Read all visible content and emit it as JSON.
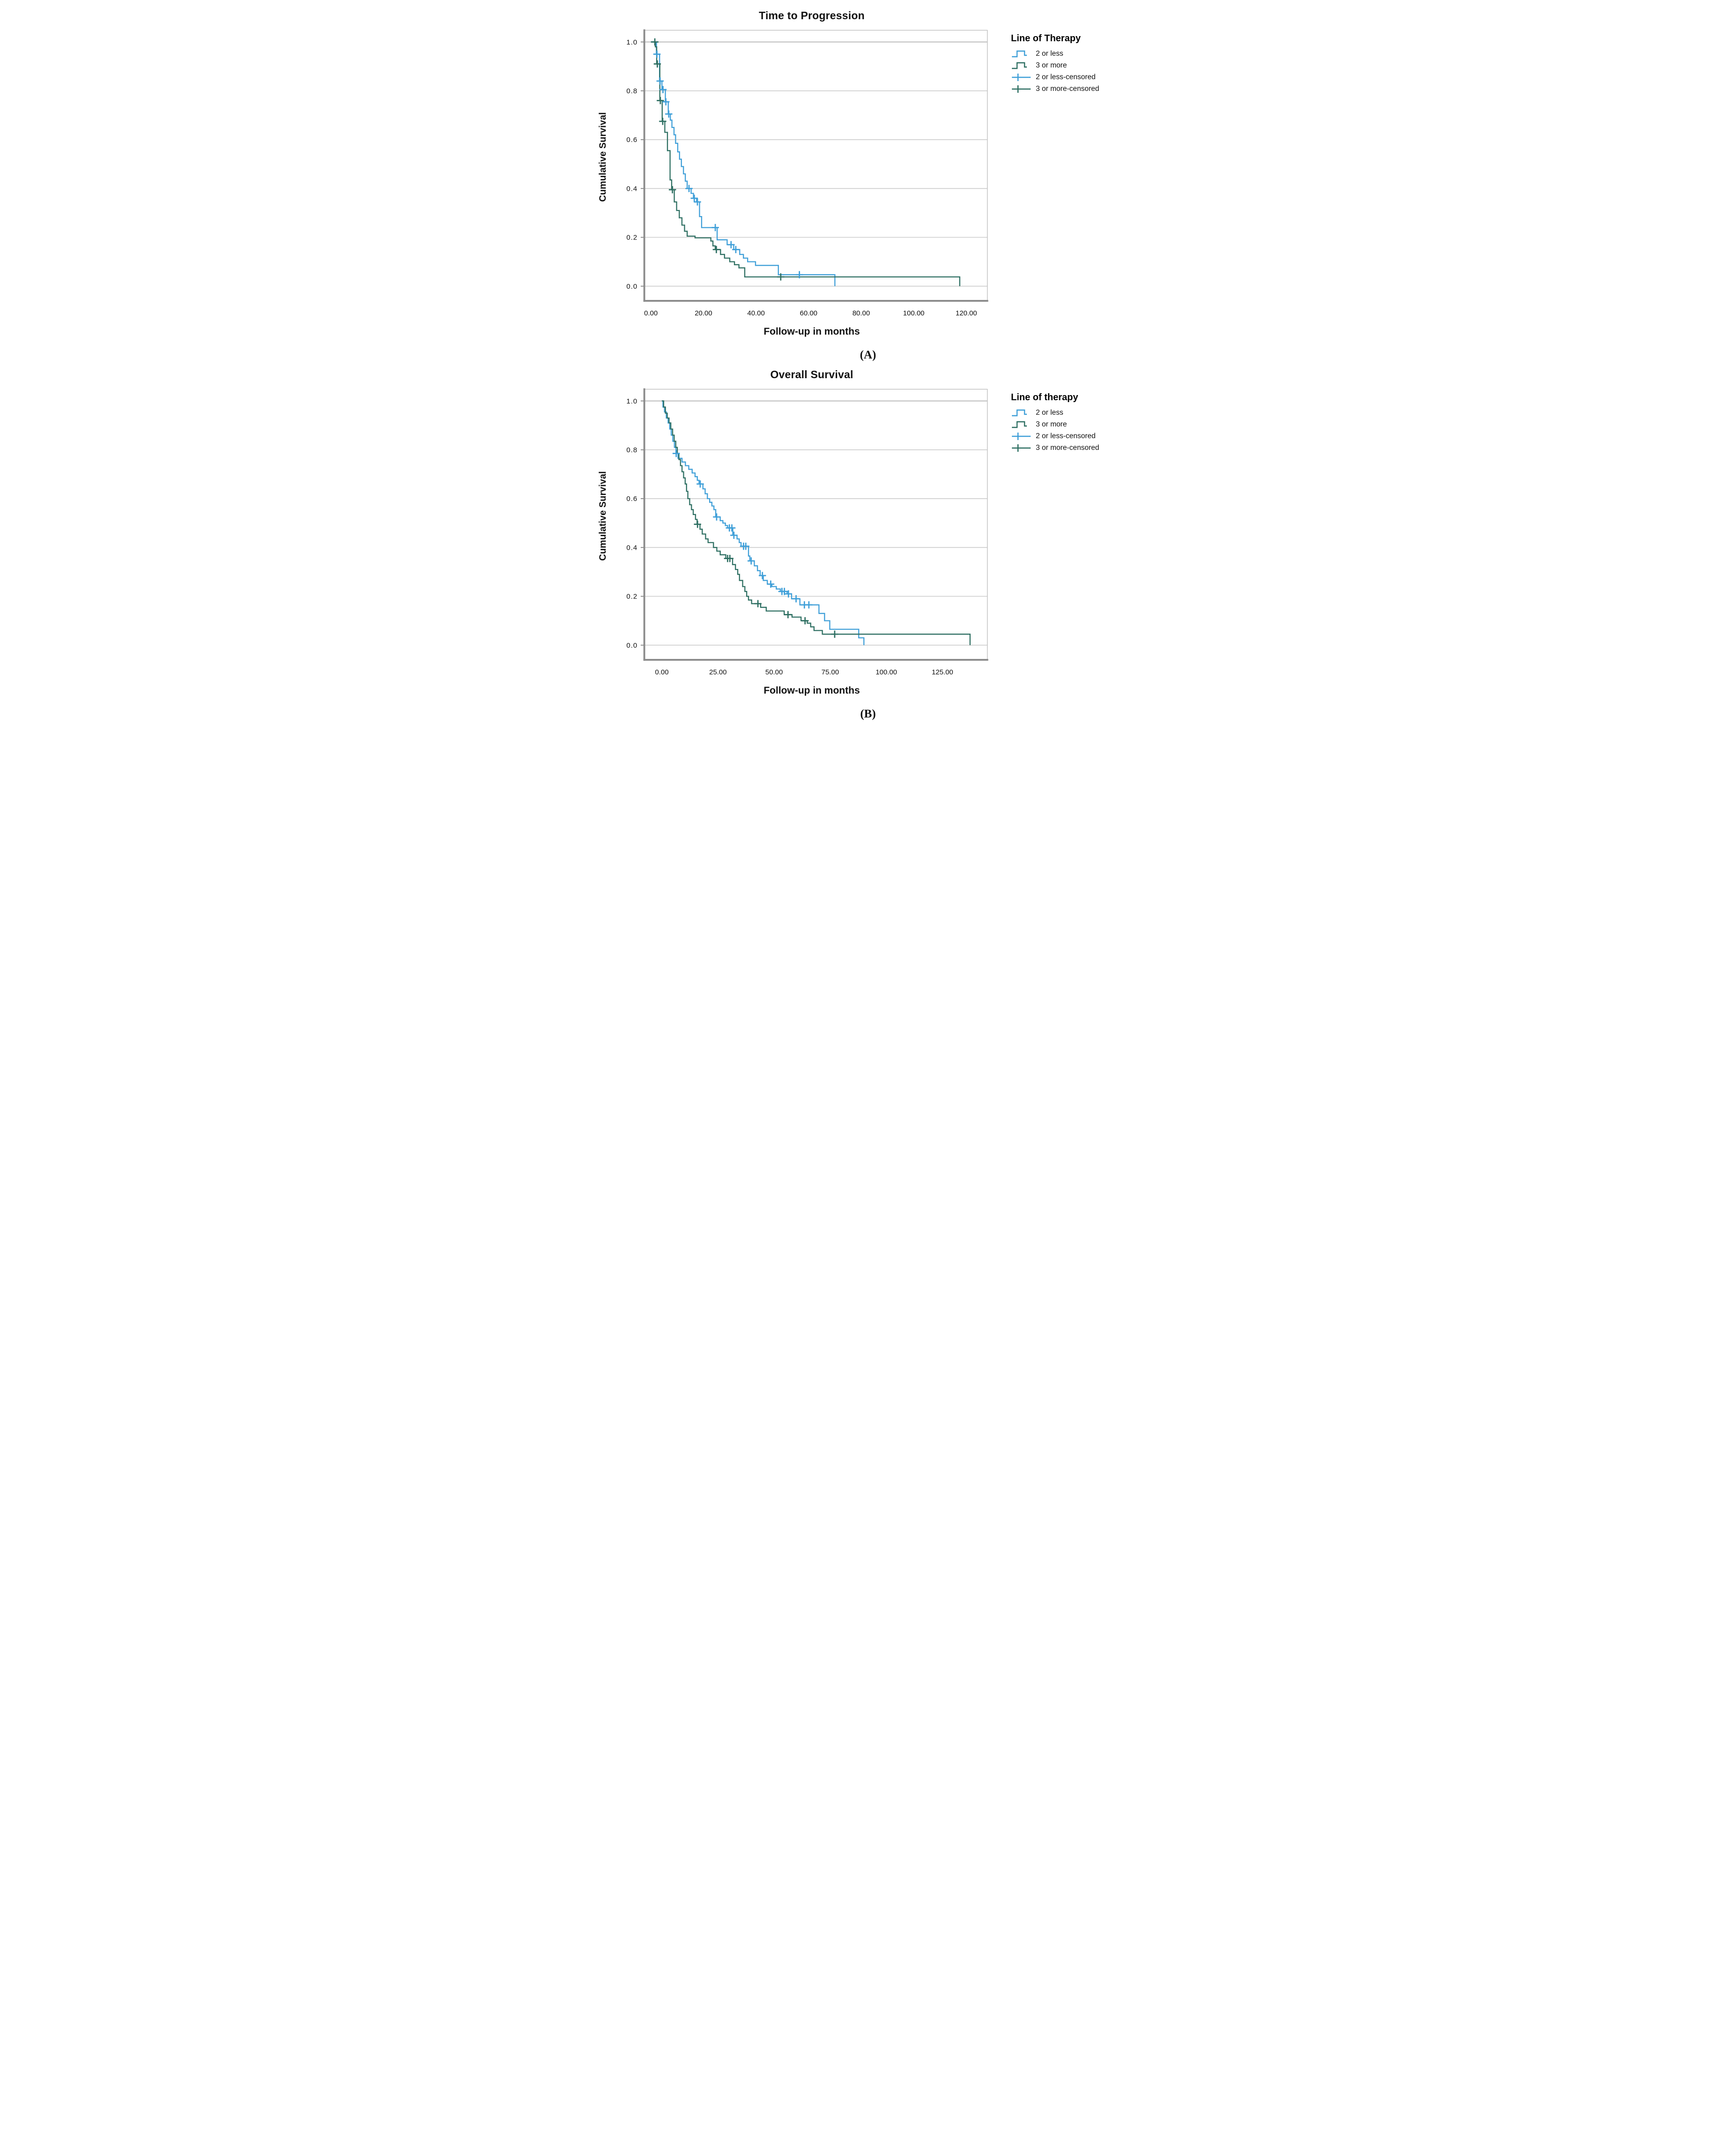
{
  "figure": {
    "background": "#ffffff",
    "gridline_color": "#cfcfcf",
    "frame_color": "#bdbdbd",
    "axis_color": "#8c8c8c",
    "text_color": "#111111"
  },
  "chart_data": [
    {
      "type": "line",
      "subtype": "kaplan-meier-step",
      "title": "Time to Progression",
      "xlabel": "Follow-up in months",
      "ylabel": "Cumulative Survival",
      "caption": "(A)",
      "legend_title": "Line of Therapy",
      "legend_position": "right",
      "grid": true,
      "xlim": [
        -2.5,
        128
      ],
      "ylim": [
        -0.06,
        1.048
      ],
      "x_ticks": {
        "values": [
          0,
          20,
          40,
          60,
          80,
          100,
          120
        ],
        "labels": [
          "0.00",
          "20.00",
          "40.00",
          "60.00",
          "80.00",
          "100.00",
          "120.00"
        ]
      },
      "y_ticks": {
        "values": [
          1.0,
          0.8,
          0.6,
          0.4,
          0.2,
          0.0
        ],
        "labels": [
          "1.0",
          "0.8",
          "0.6",
          "0.4",
          "0.2",
          "0.0"
        ]
      },
      "series": [
        {
          "name": "2 or less",
          "style": "step",
          "marker": "none",
          "color": "#3F9FD8",
          "points": [
            [
              0,
              1.0
            ],
            [
              2.1,
              0.95
            ],
            [
              3.3,
              0.84
            ],
            [
              4.2,
              0.805
            ],
            [
              5.5,
              0.755
            ],
            [
              6.6,
              0.705
            ],
            [
              7.4,
              0.68
            ],
            [
              8.0,
              0.65
            ],
            [
              8.8,
              0.62
            ],
            [
              9.4,
              0.585
            ],
            [
              10.2,
              0.55
            ],
            [
              10.9,
              0.52
            ],
            [
              11.6,
              0.49
            ],
            [
              12.4,
              0.46
            ],
            [
              13.1,
              0.43
            ],
            [
              13.8,
              0.4
            ],
            [
              15.3,
              0.38
            ],
            [
              16.2,
              0.36
            ],
            [
              17.4,
              0.345
            ],
            [
              18.5,
              0.285
            ],
            [
              19.3,
              0.24
            ],
            [
              25.2,
              0.19
            ],
            [
              29.0,
              0.17
            ],
            [
              31.5,
              0.15
            ],
            [
              33.8,
              0.13
            ],
            [
              35.2,
              0.115
            ],
            [
              36.8,
              0.1
            ],
            [
              39.8,
              0.085
            ],
            [
              48.5,
              0.047
            ],
            [
              70,
              0
            ]
          ]
        },
        {
          "name": "3 or more",
          "style": "step",
          "marker": "none",
          "color": "#2E6F62",
          "points": [
            [
              0,
              1.0
            ],
            [
              1.7,
              0.98
            ],
            [
              2.2,
              0.91
            ],
            [
              3.4,
              0.76
            ],
            [
              4.3,
              0.675
            ],
            [
              5.3,
              0.63
            ],
            [
              6.3,
              0.555
            ],
            [
              7.3,
              0.435
            ],
            [
              7.9,
              0.395
            ],
            [
              8.9,
              0.345
            ],
            [
              9.8,
              0.31
            ],
            [
              10.8,
              0.28
            ],
            [
              11.8,
              0.25
            ],
            [
              12.8,
              0.225
            ],
            [
              13.8,
              0.205
            ],
            [
              16.8,
              0.198
            ],
            [
              22.8,
              0.185
            ],
            [
              23.6,
              0.165
            ],
            [
              24.5,
              0.15
            ],
            [
              26.5,
              0.13
            ],
            [
              28.0,
              0.115
            ],
            [
              30.0,
              0.1
            ],
            [
              31.8,
              0.088
            ],
            [
              33.5,
              0.075
            ],
            [
              35.7,
              0.038
            ],
            [
              117.5,
              0
            ]
          ]
        },
        {
          "name": "2 or less-censored",
          "style": "none",
          "marker": "plus",
          "color": "#3F9FD8",
          "points": [
            [
              2.3,
              0.95
            ],
            [
              3.5,
              0.84
            ],
            [
              4.6,
              0.805
            ],
            [
              5.7,
              0.755
            ],
            [
              6.8,
              0.705
            ],
            [
              14.5,
              0.4
            ],
            [
              16.5,
              0.36
            ],
            [
              17.7,
              0.345
            ],
            [
              24.5,
              0.24
            ],
            [
              30.5,
              0.17
            ],
            [
              32.3,
              0.15
            ],
            [
              56.5,
              0.047
            ]
          ]
        },
        {
          "name": "3 or more-censored",
          "style": "none",
          "marker": "plus",
          "color": "#2E6F62",
          "points": [
            [
              1.5,
              1.0
            ],
            [
              2.45,
              0.91
            ],
            [
              3.6,
              0.76
            ],
            [
              4.5,
              0.675
            ],
            [
              8.2,
              0.395
            ],
            [
              24.9,
              0.15
            ],
            [
              49.4,
              0.038
            ]
          ]
        }
      ]
    },
    {
      "type": "line",
      "subtype": "kaplan-meier-step",
      "title": "Overall Survival",
      "xlabel": "Follow-up in months",
      "ylabel": "Cumulative Survival",
      "caption": "(B)",
      "legend_title": "Line of therapy",
      "legend_position": "right",
      "grid": true,
      "xlim": [
        -7.8,
        145
      ],
      "ylim": [
        -0.06,
        1.048
      ],
      "x_ticks": {
        "values": [
          0,
          25,
          50,
          75,
          100,
          125
        ],
        "labels": [
          "0.00",
          "25.00",
          "50.00",
          "75.00",
          "100.00",
          "125.00"
        ]
      },
      "y_ticks": {
        "values": [
          1.0,
          0.8,
          0.6,
          0.4,
          0.2,
          0.0
        ],
        "labels": [
          "1.0",
          "0.8",
          "0.6",
          "0.4",
          "0.2",
          "0.0"
        ]
      },
      "series": [
        {
          "name": "2 or less",
          "style": "step",
          "marker": "none",
          "color": "#3F9FD8",
          "points": [
            [
              0,
              1.0
            ],
            [
              0.5,
              0.975
            ],
            [
              1.2,
              0.955
            ],
            [
              2.0,
              0.93
            ],
            [
              2.8,
              0.91
            ],
            [
              3.5,
              0.885
            ],
            [
              4.2,
              0.86
            ],
            [
              4.9,
              0.835
            ],
            [
              5.6,
              0.81
            ],
            [
              6.3,
              0.785
            ],
            [
              7.2,
              0.765
            ],
            [
              9.0,
              0.75
            ],
            [
              10.5,
              0.735
            ],
            [
              12.0,
              0.72
            ],
            [
              13.5,
              0.705
            ],
            [
              14.8,
              0.69
            ],
            [
              15.8,
              0.675
            ],
            [
              16.6,
              0.66
            ],
            [
              18.3,
              0.64
            ],
            [
              19.3,
              0.62
            ],
            [
              20.3,
              0.6
            ],
            [
              21.3,
              0.585
            ],
            [
              22.3,
              0.57
            ],
            [
              23.2,
              0.555
            ],
            [
              24.0,
              0.525
            ],
            [
              26.0,
              0.51
            ],
            [
              27.2,
              0.5
            ],
            [
              28.3,
              0.49
            ],
            [
              29.3,
              0.48
            ],
            [
              31.6,
              0.45
            ],
            [
              33.5,
              0.435
            ],
            [
              34.5,
              0.42
            ],
            [
              35.3,
              0.405
            ],
            [
              38.6,
              0.365
            ],
            [
              39.2,
              0.345
            ],
            [
              41.2,
              0.325
            ],
            [
              42.6,
              0.305
            ],
            [
              43.8,
              0.285
            ],
            [
              45.2,
              0.265
            ],
            [
              47.0,
              0.25
            ],
            [
              49.0,
              0.24
            ],
            [
              51.0,
              0.23
            ],
            [
              52.8,
              0.22
            ],
            [
              55.8,
              0.21
            ],
            [
              57.8,
              0.19
            ],
            [
              61.5,
              0.165
            ],
            [
              70.0,
              0.13
            ],
            [
              72.5,
              0.1
            ],
            [
              74.8,
              0.065
            ],
            [
              87.7,
              0.03
            ],
            [
              90.0,
              0
            ]
          ]
        },
        {
          "name": "3 or more",
          "style": "step",
          "marker": "none",
          "color": "#2E6F62",
          "points": [
            [
              0,
              1.0
            ],
            [
              0.8,
              0.975
            ],
            [
              1.6,
              0.95
            ],
            [
              2.4,
              0.93
            ],
            [
              3.2,
              0.91
            ],
            [
              4.0,
              0.885
            ],
            [
              4.8,
              0.86
            ],
            [
              5.5,
              0.835
            ],
            [
              6.2,
              0.81
            ],
            [
              6.9,
              0.785
            ],
            [
              7.6,
              0.76
            ],
            [
              8.3,
              0.735
            ],
            [
              9.0,
              0.71
            ],
            [
              9.7,
              0.685
            ],
            [
              10.4,
              0.66
            ],
            [
              11.0,
              0.63
            ],
            [
              11.6,
              0.6
            ],
            [
              12.4,
              0.575
            ],
            [
              13.2,
              0.555
            ],
            [
              14.0,
              0.535
            ],
            [
              15.0,
              0.515
            ],
            [
              15.7,
              0.495
            ],
            [
              17.0,
              0.475
            ],
            [
              18.0,
              0.455
            ],
            [
              19.5,
              0.435
            ],
            [
              20.6,
              0.42
            ],
            [
              23.0,
              0.4
            ],
            [
              24.5,
              0.385
            ],
            [
              26.0,
              0.37
            ],
            [
              28.5,
              0.355
            ],
            [
              31.5,
              0.33
            ],
            [
              32.8,
              0.31
            ],
            [
              33.8,
              0.29
            ],
            [
              34.6,
              0.265
            ],
            [
              36.0,
              0.24
            ],
            [
              37.0,
              0.22
            ],
            [
              37.8,
              0.2
            ],
            [
              38.6,
              0.185
            ],
            [
              40.0,
              0.17
            ],
            [
              44.0,
              0.155
            ],
            [
              46.5,
              0.14
            ],
            [
              54.5,
              0.125
            ],
            [
              58.0,
              0.115
            ],
            [
              62.0,
              0.1
            ],
            [
              64.8,
              0.09
            ],
            [
              66.3,
              0.075
            ],
            [
              67.8,
              0.06
            ],
            [
              71.5,
              0.045
            ],
            [
              137.3,
              0
            ]
          ]
        },
        {
          "name": "2 or less-censored",
          "style": "none",
          "marker": "plus",
          "color": "#3F9FD8",
          "points": [
            [
              6.4,
              0.785
            ],
            [
              17.1,
              0.66
            ],
            [
              24.4,
              0.525
            ],
            [
              30.1,
              0.48
            ],
            [
              31.2,
              0.48
            ],
            [
              32.1,
              0.45
            ],
            [
              36.4,
              0.405
            ],
            [
              37.4,
              0.405
            ],
            [
              39.8,
              0.345
            ],
            [
              44.8,
              0.285
            ],
            [
              48.5,
              0.25
            ],
            [
              53.5,
              0.22
            ],
            [
              54.6,
              0.22
            ],
            [
              56.4,
              0.21
            ],
            [
              59.8,
              0.19
            ],
            [
              63.5,
              0.165
            ],
            [
              65.5,
              0.165
            ]
          ]
        },
        {
          "name": "3 or more-censored",
          "style": "none",
          "marker": "plus",
          "color": "#2E6F62",
          "points": [
            [
              15.9,
              0.495
            ],
            [
              29.3,
              0.355
            ],
            [
              30.3,
              0.355
            ],
            [
              42.8,
              0.17
            ],
            [
              56.2,
              0.125
            ],
            [
              63.8,
              0.1
            ],
            [
              77.0,
              0.045
            ]
          ]
        }
      ]
    }
  ]
}
